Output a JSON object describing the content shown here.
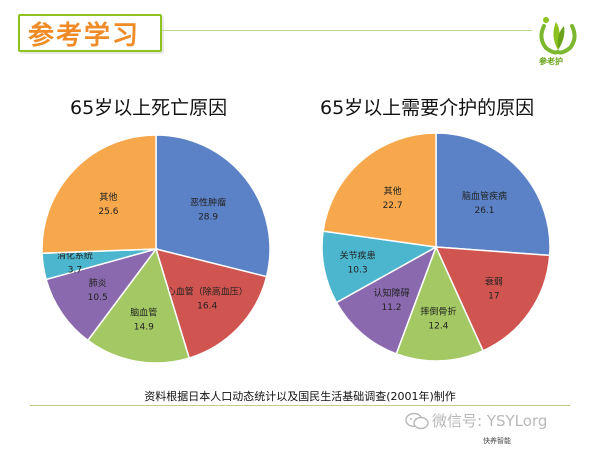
{
  "header": {
    "title": "参考学习",
    "logo_text": "参老护"
  },
  "chart_data": [
    {
      "type": "pie",
      "title": "65岁以上死亡原因",
      "slices": [
        {
          "label": "恶性肿瘤",
          "value": 28.9,
          "color": "#5b82c7"
        },
        {
          "label": "心血管（除高血压）",
          "value": 16.4,
          "color": "#d0544f"
        },
        {
          "label": "脑血管",
          "value": 14.9,
          "color": "#a4c964"
        },
        {
          "label": "肺炎",
          "value": 10.5,
          "color": "#8a69ae"
        },
        {
          "label": "消化系统",
          "value": 3.7,
          "color": "#4cb6cf"
        },
        {
          "label": "其他",
          "value": 25.6,
          "color": "#f7a84d"
        }
      ]
    },
    {
      "type": "pie",
      "title": "65岁以上需要介护的原因",
      "slices": [
        {
          "label": "脑血管疾病",
          "value": 26.1,
          "color": "#5b82c7"
        },
        {
          "label": "衰弱",
          "value": 17,
          "color": "#d0544f"
        },
        {
          "label": "摔倒骨折",
          "value": 12.4,
          "color": "#a4c964"
        },
        {
          "label": "认知障碍",
          "value": 11.2,
          "color": "#8a69ae"
        },
        {
          "label": "关节疾患",
          "value": 10.3,
          "color": "#4cb6cf"
        },
        {
          "label": "其他",
          "value": 22.7,
          "color": "#f7a84d"
        }
      ]
    }
  ],
  "footer": {
    "source": "资料根据日本人口动态统计以及国民生活基础调查(2001年)制作",
    "watermark": "微信号: YSYLorg",
    "watermark_small": "快养智能"
  }
}
